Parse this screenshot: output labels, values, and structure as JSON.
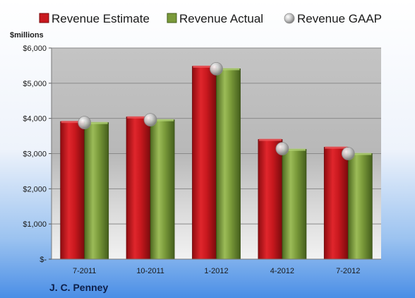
{
  "chart_data": {
    "type": "bar",
    "ylabel": "$millions",
    "company": "J. C. Penney",
    "categories": [
      "7-2011",
      "10-2011",
      "1-2012",
      "4-2012",
      "7-2012"
    ],
    "y_ticks": [
      {
        "value": 0,
        "label": "$-"
      },
      {
        "value": 1000,
        "label": "$1,000"
      },
      {
        "value": 2000,
        "label": "$2,000"
      },
      {
        "value": 3000,
        "label": "$3,000"
      },
      {
        "value": 4000,
        "label": "$4,000"
      },
      {
        "value": 5000,
        "label": "$5,000"
      },
      {
        "value": 6000,
        "label": "$6,000"
      }
    ],
    "ylim": [
      0,
      6000
    ],
    "grid": true,
    "legend": "top",
    "series": [
      {
        "name": "Revenue Estimate",
        "kind": "bar",
        "color": "#c8181e",
        "values": [
          3910,
          4040,
          5480,
          3400,
          3180
        ]
      },
      {
        "name": "Revenue Actual",
        "kind": "bar",
        "color": "#7a9a3a",
        "values": [
          3880,
          3960,
          5410,
          3120,
          3000
        ]
      },
      {
        "name": "Revenue GAAP",
        "kind": "marker",
        "color": "#c0c0c0",
        "values": [
          3880,
          3960,
          5410,
          3140,
          3000
        ]
      }
    ]
  }
}
